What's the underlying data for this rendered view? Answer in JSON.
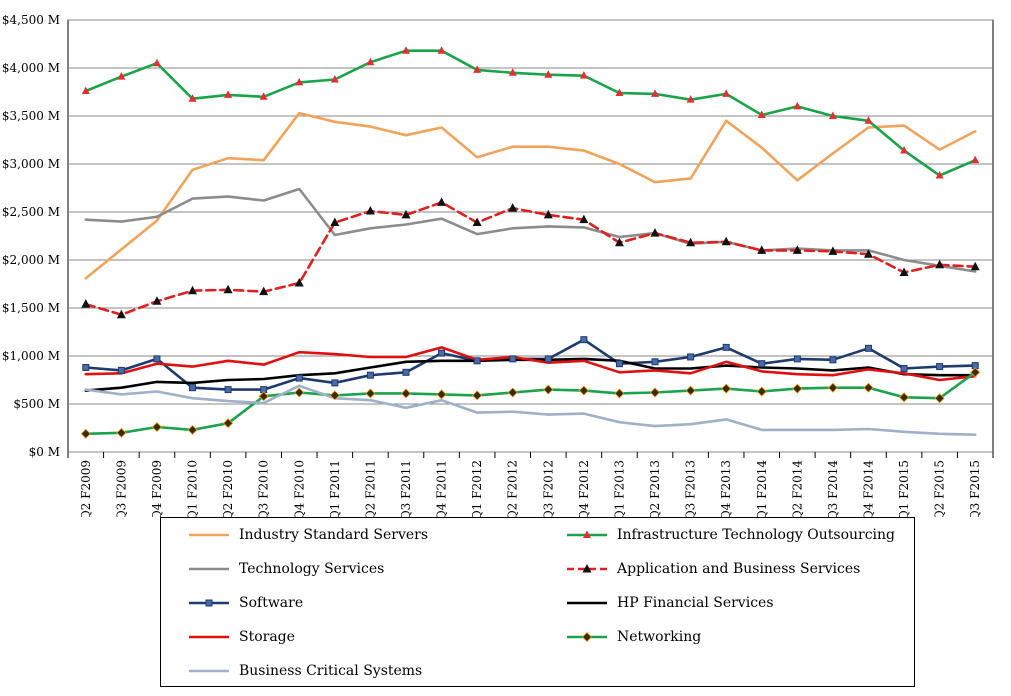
{
  "chart_data": {
    "type": "line",
    "title": "",
    "xlabel": "",
    "ylabel": "",
    "ylim": [
      0,
      4500
    ],
    "y_ticks": [
      0,
      500,
      1000,
      1500,
      2000,
      2500,
      3000,
      3500,
      4000,
      4500
    ],
    "y_tick_labels": [
      "$0 M",
      "$500 M",
      "$1,000 M",
      "$1,500 M",
      "$2,000 M",
      "$2,500 M",
      "$3,000 M",
      "$3,500 M",
      "$4,000 M",
      "$4,500 M"
    ],
    "grid": "horizontal",
    "legend_position": "bottom",
    "categories": [
      "Q2 F2009",
      "Q3 F2009",
      "Q4 F2009",
      "Q1 F2010",
      "Q2 F2010",
      "Q3 F2010",
      "Q4 F2010",
      "Q1 F2011",
      "Q2 F2011",
      "Q3 F2011",
      "Q4 F2011",
      "Q1 F2012",
      "Q2 F2012",
      "Q3 F2012",
      "Q4 F2012",
      "Q1 F2013",
      "Q2 F2013",
      "Q3 F2013",
      "Q4 F2013",
      "Q1 F2014",
      "Q2 F2014",
      "Q3 F2014",
      "Q4 F2014",
      "Q1 F2015",
      "Q2 F2015",
      "Q3 F2015"
    ],
    "series": [
      {
        "name": "Industry Standard Servers",
        "color": "#f0a35a",
        "dash": "solid",
        "marker": "none",
        "values": [
          1810,
          2110,
          2410,
          2940,
          3060,
          3040,
          3530,
          3440,
          3390,
          3300,
          3380,
          3070,
          3180,
          3180,
          3140,
          3000,
          2810,
          2850,
          3450,
          3170,
          2830,
          3110,
          3380,
          3400,
          3150,
          3340
        ]
      },
      {
        "name": "Infrastructure Technology Outsourcing",
        "color": "#1aa34a",
        "dash": "solid",
        "marker": "red-triangle",
        "values": [
          3760,
          3910,
          4050,
          3680,
          3720,
          3700,
          3850,
          3880,
          4060,
          4180,
          4180,
          3980,
          3950,
          3930,
          3920,
          3740,
          3730,
          3670,
          3730,
          3510,
          3600,
          3500,
          3450,
          3140,
          2880,
          3040
        ]
      },
      {
        "name": "Technology Services",
        "color": "#8c8c8c",
        "dash": "solid",
        "marker": "none",
        "values": [
          2420,
          2400,
          2450,
          2640,
          2660,
          2620,
          2740,
          2260,
          2330,
          2370,
          2430,
          2270,
          2330,
          2350,
          2340,
          2240,
          2280,
          2170,
          2190,
          2100,
          2120,
          2100,
          2100,
          2000,
          1940,
          1880
        ]
      },
      {
        "name": "Application and Business Services",
        "color": "#e02020",
        "dash": "dashed",
        "marker": "black-triangle",
        "values": [
          1540,
          1430,
          1570,
          1680,
          1690,
          1670,
          1760,
          2390,
          2510,
          2470,
          2600,
          2390,
          2540,
          2470,
          2420,
          2180,
          2280,
          2180,
          2190,
          2100,
          2100,
          2090,
          2060,
          1870,
          1950,
          1930
        ]
      },
      {
        "name": "Software",
        "color": "#1f3a6e",
        "dash": "solid",
        "marker": "square",
        "values": [
          880,
          850,
          970,
          670,
          650,
          650,
          770,
          720,
          800,
          830,
          1030,
          950,
          970,
          970,
          1170,
          920,
          940,
          990,
          1090,
          920,
          970,
          960,
          1080,
          870,
          890,
          900
        ]
      },
      {
        "name": "HP Financial Services",
        "color": "#000000",
        "dash": "solid",
        "marker": "none",
        "values": [
          640,
          670,
          730,
          720,
          750,
          760,
          800,
          820,
          880,
          940,
          950,
          950,
          960,
          960,
          970,
          950,
          870,
          870,
          900,
          880,
          870,
          850,
          880,
          810,
          800,
          800
        ]
      },
      {
        "name": "Storage",
        "color": "#e01010",
        "dash": "solid",
        "marker": "none",
        "values": [
          810,
          820,
          920,
          890,
          950,
          910,
          1040,
          1020,
          990,
          990,
          1090,
          960,
          990,
          930,
          950,
          830,
          850,
          820,
          940,
          840,
          810,
          800,
          860,
          820,
          750,
          790
        ]
      },
      {
        "name": "Networking",
        "color": "#1aa34a",
        "dash": "solid",
        "marker": "diamond",
        "values": [
          190,
          200,
          260,
          230,
          300,
          580,
          620,
          590,
          610,
          610,
          600,
          590,
          620,
          650,
          640,
          610,
          620,
          640,
          660,
          630,
          660,
          670,
          670,
          570,
          560,
          830
        ]
      },
      {
        "name": "Business Critical Systems",
        "color": "#9fb0c8",
        "dash": "solid",
        "marker": "none",
        "values": [
          650,
          600,
          630,
          560,
          530,
          510,
          690,
          560,
          540,
          460,
          540,
          410,
          420,
          390,
          400,
          310,
          270,
          290,
          340,
          230,
          230,
          230,
          240,
          210,
          190,
          180
        ]
      }
    ]
  }
}
